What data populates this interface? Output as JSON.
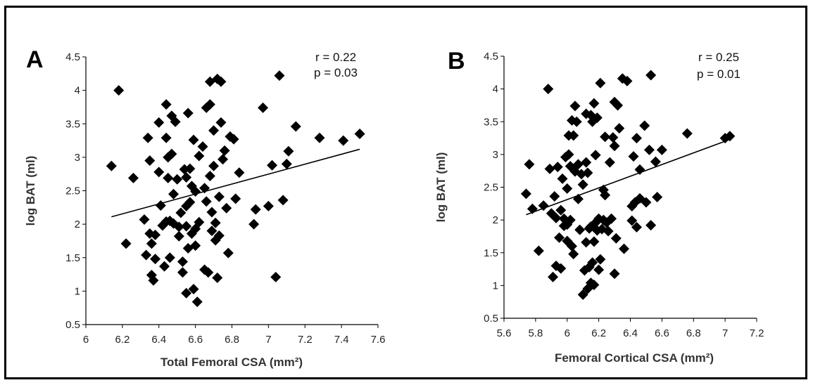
{
  "chart_data": [
    {
      "type": "scatter",
      "panel_label": "A",
      "xlabel": "Total Femoral CSA (mm²)",
      "ylabel": "log BAT (ml)",
      "xlim": [
        6,
        7.6
      ],
      "ylim": [
        0.5,
        4.5
      ],
      "xticks": [
        "6",
        "6.2",
        "6.4",
        "6.6",
        "6.8",
        "7",
        "7.2",
        "7.4",
        "7.6"
      ],
      "yticks": [
        "0.5",
        "1",
        "1.5",
        "2",
        "2.5",
        "3",
        "3.5",
        "4",
        "4.5"
      ],
      "annotations": [
        "r = 0.22",
        "p = 0.03"
      ],
      "trendline": [
        [
          6.14,
          2.11
        ],
        [
          7.5,
          3.12
        ]
      ],
      "color": "#000000",
      "points": [
        [
          6.14,
          2.87
        ],
        [
          6.18,
          4.0
        ],
        [
          6.22,
          1.71
        ],
        [
          6.26,
          2.69
        ],
        [
          6.32,
          2.07
        ],
        [
          6.33,
          1.54
        ],
        [
          6.34,
          3.29
        ],
        [
          6.35,
          2.95
        ],
        [
          6.35,
          1.86
        ],
        [
          6.36,
          1.71
        ],
        [
          6.36,
          1.24
        ],
        [
          6.37,
          1.16
        ],
        [
          6.38,
          1.84
        ],
        [
          6.38,
          1.48
        ],
        [
          6.4,
          3.52
        ],
        [
          6.4,
          2.78
        ],
        [
          6.41,
          2.28
        ],
        [
          6.42,
          1.98
        ],
        [
          6.43,
          1.37
        ],
        [
          6.44,
          3.79
        ],
        [
          6.44,
          3.29
        ],
        [
          6.44,
          2.04
        ],
        [
          6.45,
          3.0
        ],
        [
          6.45,
          2.69
        ],
        [
          6.46,
          2.05
        ],
        [
          6.46,
          1.5
        ],
        [
          6.47,
          3.62
        ],
        [
          6.47,
          3.05
        ],
        [
          6.48,
          2.45
        ],
        [
          6.48,
          2.01
        ],
        [
          6.49,
          3.53
        ],
        [
          6.5,
          2.67
        ],
        [
          6.51,
          1.96
        ],
        [
          6.51,
          1.82
        ],
        [
          6.52,
          2.17
        ],
        [
          6.53,
          1.44
        ],
        [
          6.53,
          1.28
        ],
        [
          6.54,
          2.82
        ],
        [
          6.55,
          2.7
        ],
        [
          6.55,
          2.27
        ],
        [
          6.55,
          1.97
        ],
        [
          6.55,
          0.97
        ],
        [
          6.56,
          3.66
        ],
        [
          6.56,
          1.64
        ],
        [
          6.57,
          2.83
        ],
        [
          6.57,
          2.33
        ],
        [
          6.58,
          2.57
        ],
        [
          6.58,
          1.86
        ],
        [
          6.59,
          3.26
        ],
        [
          6.59,
          1.03
        ],
        [
          6.6,
          2.49
        ],
        [
          6.6,
          1.93
        ],
        [
          6.6,
          1.68
        ],
        [
          6.61,
          0.84
        ],
        [
          6.62,
          3.02
        ],
        [
          6.62,
          2.03
        ],
        [
          6.64,
          3.16
        ],
        [
          6.65,
          2.54
        ],
        [
          6.65,
          1.32
        ],
        [
          6.66,
          3.74
        ],
        [
          6.66,
          2.34
        ],
        [
          6.67,
          1.28
        ],
        [
          6.68,
          4.13
        ],
        [
          6.68,
          3.79
        ],
        [
          6.68,
          2.72
        ],
        [
          6.69,
          2.18
        ],
        [
          6.69,
          1.9
        ],
        [
          6.7,
          3.4
        ],
        [
          6.7,
          2.87
        ],
        [
          6.71,
          2.02
        ],
        [
          6.71,
          1.76
        ],
        [
          6.72,
          4.17
        ],
        [
          6.72,
          1.2
        ],
        [
          6.73,
          2.41
        ],
        [
          6.73,
          1.83
        ],
        [
          6.74,
          4.13
        ],
        [
          6.74,
          3.52
        ],
        [
          6.75,
          2.97
        ],
        [
          6.76,
          3.1
        ],
        [
          6.77,
          2.24
        ],
        [
          6.78,
          1.57
        ],
        [
          6.79,
          3.31
        ],
        [
          6.81,
          3.27
        ],
        [
          6.82,
          2.38
        ],
        [
          6.84,
          2.77
        ],
        [
          6.92,
          2.0
        ],
        [
          6.93,
          2.22
        ],
        [
          6.97,
          3.74
        ],
        [
          7.0,
          2.27
        ],
        [
          7.02,
          2.88
        ],
        [
          7.04,
          1.21
        ],
        [
          7.06,
          4.22
        ],
        [
          7.08,
          2.36
        ],
        [
          7.1,
          2.9
        ],
        [
          7.11,
          3.09
        ],
        [
          7.15,
          3.46
        ],
        [
          7.28,
          3.29
        ],
        [
          7.41,
          3.25
        ],
        [
          7.5,
          3.35
        ]
      ]
    },
    {
      "type": "scatter",
      "panel_label": "B",
      "xlabel": "Femoral Cortical CSA (mm²)",
      "ylabel": "log BAT (ml)",
      "xlim": [
        5.6,
        7.2
      ],
      "ylim": [
        0.5,
        4.5
      ],
      "xticks": [
        "5.6",
        "5.8",
        "6",
        "6.2",
        "6.4",
        "6.6",
        "6.8",
        "7",
        "7.2"
      ],
      "yticks": [
        "0.5",
        "1",
        "1.5",
        "2",
        "2.5",
        "3",
        "3.5",
        "4",
        "4.5"
      ],
      "annotations": [
        "r = 0.25",
        "p = 0.01"
      ],
      "trendline": [
        [
          5.74,
          2.08
        ],
        [
          7.02,
          3.22
        ]
      ],
      "color": "#000000",
      "points": [
        [
          5.74,
          2.4
        ],
        [
          5.76,
          2.85
        ],
        [
          5.78,
          2.17
        ],
        [
          5.82,
          1.53
        ],
        [
          5.85,
          2.22
        ],
        [
          5.88,
          4.0
        ],
        [
          5.89,
          2.78
        ],
        [
          5.9,
          2.1
        ],
        [
          5.91,
          1.13
        ],
        [
          5.92,
          2.36
        ],
        [
          5.93,
          1.3
        ],
        [
          5.93,
          2.03
        ],
        [
          5.94,
          2.81
        ],
        [
          5.95,
          1.73
        ],
        [
          5.96,
          2.15
        ],
        [
          5.96,
          1.26
        ],
        [
          5.97,
          2.63
        ],
        [
          5.98,
          2.02
        ],
        [
          5.98,
          1.91
        ],
        [
          5.99,
          2.96
        ],
        [
          6.0,
          2.48
        ],
        [
          6.0,
          1.93
        ],
        [
          6.0,
          1.68
        ],
        [
          6.01,
          3.29
        ],
        [
          6.01,
          3.0
        ],
        [
          6.02,
          2.82
        ],
        [
          6.02,
          2.0
        ],
        [
          6.03,
          3.52
        ],
        [
          6.03,
          1.6
        ],
        [
          6.04,
          3.29
        ],
        [
          6.04,
          1.48
        ],
        [
          6.05,
          3.74
        ],
        [
          6.05,
          2.74
        ],
        [
          6.06,
          3.5
        ],
        [
          6.07,
          2.85
        ],
        [
          6.07,
          2.32
        ],
        [
          6.08,
          1.85
        ],
        [
          6.09,
          2.7
        ],
        [
          6.1,
          2.54
        ],
        [
          6.1,
          0.86
        ],
        [
          6.11,
          1.23
        ],
        [
          6.12,
          3.62
        ],
        [
          6.12,
          2.88
        ],
        [
          6.12,
          1.66
        ],
        [
          6.13,
          2.72
        ],
        [
          6.13,
          0.95
        ],
        [
          6.14,
          1.87
        ],
        [
          6.14,
          1.28
        ],
        [
          6.15,
          3.6
        ],
        [
          6.15,
          1.9
        ],
        [
          6.15,
          1.04
        ],
        [
          6.16,
          3.5
        ],
        [
          6.16,
          1.35
        ],
        [
          6.17,
          3.78
        ],
        [
          6.17,
          1.67
        ],
        [
          6.17,
          1.01
        ],
        [
          6.18,
          2.99
        ],
        [
          6.18,
          1.96
        ],
        [
          6.19,
          3.56
        ],
        [
          6.19,
          1.84
        ],
        [
          6.2,
          2.02
        ],
        [
          6.2,
          1.24
        ],
        [
          6.21,
          4.09
        ],
        [
          6.21,
          1.4
        ],
        [
          6.22,
          1.86
        ],
        [
          6.23,
          2.46
        ],
        [
          6.23,
          2.0
        ],
        [
          6.24,
          3.27
        ],
        [
          6.24,
          2.38
        ],
        [
          6.25,
          1.96
        ],
        [
          6.26,
          1.83
        ],
        [
          6.27,
          2.88
        ],
        [
          6.28,
          2.02
        ],
        [
          6.29,
          3.26
        ],
        [
          6.3,
          3.8
        ],
        [
          6.3,
          3.13
        ],
        [
          6.3,
          1.18
        ],
        [
          6.31,
          1.72
        ],
        [
          6.32,
          3.75
        ],
        [
          6.33,
          3.4
        ],
        [
          6.35,
          4.16
        ],
        [
          6.36,
          1.56
        ],
        [
          6.38,
          4.12
        ],
        [
          6.41,
          2.21
        ],
        [
          6.41,
          1.99
        ],
        [
          6.42,
          2.97
        ],
        [
          6.43,
          2.27
        ],
        [
          6.44,
          3.25
        ],
        [
          6.44,
          1.89
        ],
        [
          6.46,
          2.77
        ],
        [
          6.46,
          2.33
        ],
        [
          6.49,
          3.44
        ],
        [
          6.5,
          2.27
        ],
        [
          6.52,
          3.07
        ],
        [
          6.53,
          4.21
        ],
        [
          6.53,
          1.92
        ],
        [
          6.56,
          2.89
        ],
        [
          6.57,
          2.35
        ],
        [
          6.6,
          3.07
        ],
        [
          6.76,
          3.32
        ],
        [
          7.0,
          3.25
        ],
        [
          7.03,
          3.28
        ]
      ]
    }
  ]
}
